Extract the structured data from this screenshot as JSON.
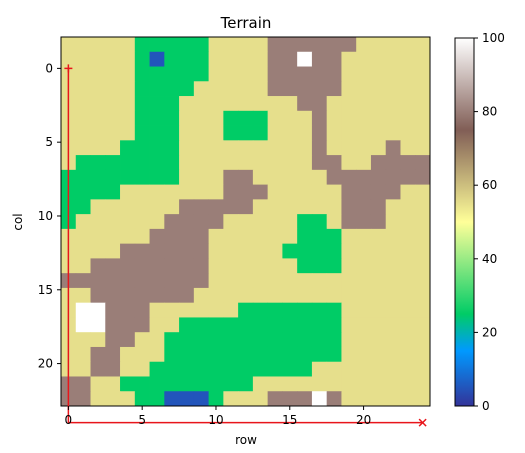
{
  "chart_data": {
    "type": "heatmap",
    "title": "Terrain",
    "xlabel": "row",
    "ylabel": "col",
    "colormap": "terrain",
    "grid_size": 25,
    "x_ticks": [
      0,
      5,
      10,
      15,
      20
    ],
    "y_ticks": [
      0,
      5,
      10,
      15,
      20
    ],
    "colorbar": {
      "min": 0,
      "max": 100,
      "ticks": [
        0,
        20,
        40,
        60,
        80,
        100
      ]
    },
    "levels": {
      "D": 5,
      "G": 25,
      "Y": 55,
      "B": 80,
      "W": 100
    },
    "rows": [
      "YYYYYGGGGGYYYYBBBBBBYYYYY",
      "YYYYYGDGGGYYYYBBWBBYYYYYY",
      "YYYYYGGGGGYYYYBBBBBYYYYYY",
      "YYYYYGGGGYYYYYBBBBBYYYYYY",
      "YYYYYGGGYYYYYYYYBBYYYYYYY",
      "YYYYYGGGYYYGGGYYYBYYYYYYY",
      "YYYYYGGGYYYGGGYYYBYYYYYYY",
      "YYYYGGGGYYYYYYYYYBYYYYBYY",
      "YGGGGGGGYYYYYYYYYBBYYBBBB",
      "GGGGGGGGYYYBBYYYYYBBBBBBB",
      "GGGGYYYYYYYBBBYYYYYBBBBYY",
      "GGYYYYYYBBBBBYYYYYYBBBYYY",
      "GYYYYYYBBBBYYYYYGGYBBBYYY",
      "YYYYYYBBBBYYYYYYGGGYYYYYY",
      "YYYYBBBBBBYYYYYGGGGYYYYYY",
      "YYBBBBBBBBYYYYYYGGGYYYYYY",
      "BBBBBBBBBBYYYYYYYYYYYYYYY",
      "YYBBBBBBBYYYYYYYYYYYYYYYY",
      "YWWBBBYYYYYYGGGGGGGYYYYYY",
      "YWWBBBYYGGGGGGGGGGGYYYYYY",
      "YYYBBYYGGGGGGGGGGGGYYYYYY",
      "YYBBYYYGGGGGGGGGGGGYYYYYY",
      "YYBBYYGGGGGGGGGGGYYYYYYYY",
      "BBYYGGGGGGGGGYYYYYYYYYYYY",
      "BBYYYGGDDDGYYYBBBWBYYYYYY"
    ],
    "path": [
      [
        0,
        0
      ],
      [
        0,
        24
      ],
      [
        24,
        24
      ]
    ],
    "start_marker": "+",
    "end_marker": "x",
    "path_color": "#e8151b"
  }
}
